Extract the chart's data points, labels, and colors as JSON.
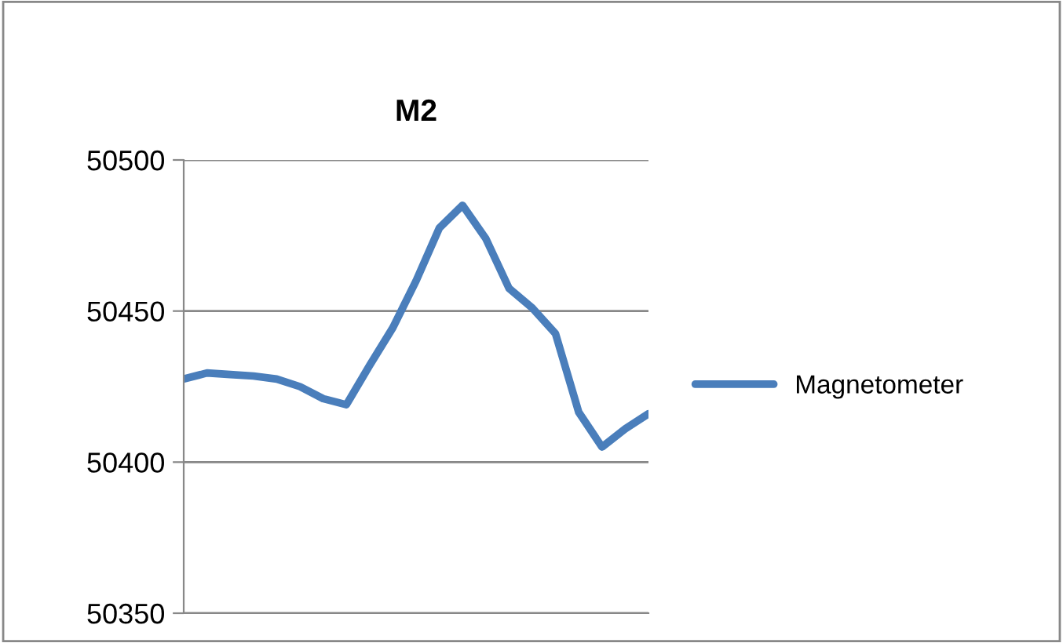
{
  "chart_data": {
    "type": "line",
    "title": "M2",
    "categories": [
      null,
      null,
      null,
      null,
      null,
      null,
      null,
      null,
      null,
      null,
      null,
      null,
      null,
      null,
      null,
      null,
      null,
      null,
      null,
      null,
      null
    ],
    "series": [
      {
        "name": "Magnetometer",
        "color": "#4a7ebb",
        "values": [
          50427.5,
          50429.5,
          50429,
          50428.5,
          50427.5,
          50425,
          50421,
          50419,
          50432,
          50444.5,
          50460,
          50477.5,
          50485,
          50474,
          50457.5,
          50451,
          50442.5,
          50416.5,
          50405,
          50411,
          50416
        ]
      }
    ],
    "ylim": [
      50350,
      50500
    ],
    "yticks": [
      50350,
      50400,
      50450,
      50500
    ],
    "grid": "y",
    "legend": "right",
    "marker": "none",
    "line_style": "solid"
  }
}
